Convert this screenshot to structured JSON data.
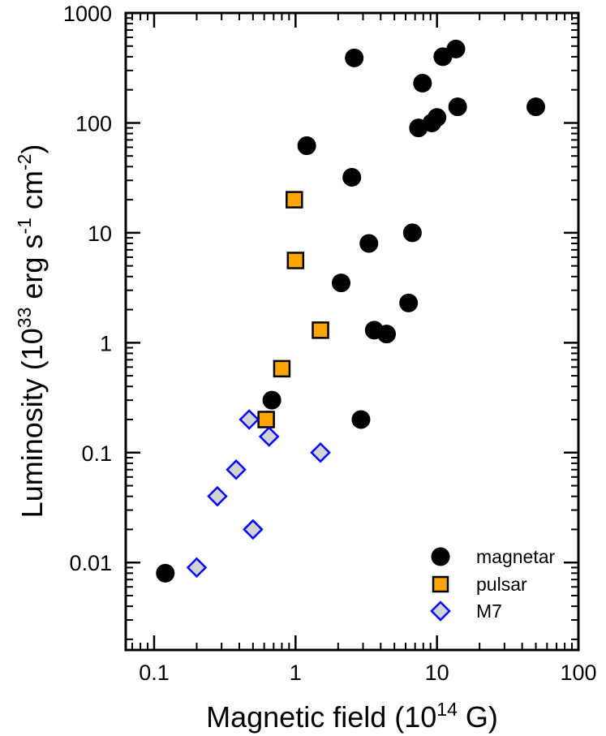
{
  "chart_data": {
    "type": "scatter",
    "x_scale": "log",
    "y_scale": "log",
    "xlim": [
      0.063,
      100
    ],
    "ylim": [
      0.0016,
      1000
    ],
    "xlabel": {
      "prefix": "Magnetic field (10",
      "exp": "14",
      "suffix": " G)"
    },
    "ylabel": {
      "prefix": "Luminosity (10",
      "exp1": "33",
      "mid": " erg s",
      "exp2": "-1",
      "mid2": " cm",
      "exp3": "-2",
      "suffix": ")"
    },
    "x_ticks": [
      {
        "value": 0.1,
        "label": "0.1"
      },
      {
        "value": 1,
        "label": "1"
      },
      {
        "value": 10,
        "label": "10"
      },
      {
        "value": 100,
        "label": "100"
      }
    ],
    "y_ticks": [
      {
        "value": 0.01,
        "label": "0.01"
      },
      {
        "value": 0.1,
        "label": "0.1"
      },
      {
        "value": 1,
        "label": "1"
      },
      {
        "value": 10,
        "label": "10"
      },
      {
        "value": 100,
        "label": "100"
      },
      {
        "value": 1000,
        "label": "1000"
      }
    ],
    "legend_position": "bottom-right",
    "series": [
      {
        "name": "magnetar",
        "marker": "circle",
        "color": "#000000",
        "edge": "#000000",
        "points": [
          [
            0.12,
            0.008
          ],
          [
            0.68,
            0.3
          ],
          [
            1.2,
            62
          ],
          [
            2.1,
            3.5
          ],
          [
            2.5,
            32
          ],
          [
            2.6,
            390
          ],
          [
            2.9,
            0.2
          ],
          [
            3.3,
            8
          ],
          [
            3.6,
            1.3
          ],
          [
            4.4,
            1.2
          ],
          [
            6.3,
            2.3
          ],
          [
            6.7,
            10
          ],
          [
            7.4,
            90
          ],
          [
            7.9,
            230
          ],
          [
            9.2,
            100
          ],
          [
            10,
            112
          ],
          [
            11,
            400
          ],
          [
            13.6,
            470
          ],
          [
            14,
            140
          ],
          [
            50,
            140
          ]
        ]
      },
      {
        "name": "pulsar",
        "marker": "square",
        "color": "#FFA500",
        "edge": "#000000",
        "points": [
          [
            0.62,
            0.2
          ],
          [
            0.8,
            0.58
          ],
          [
            0.98,
            20
          ],
          [
            1.0,
            5.6
          ],
          [
            1.5,
            1.3
          ]
        ]
      },
      {
        "name": "M7",
        "marker": "diamond",
        "color": "#D3D3D3",
        "edge": "#0000FF",
        "points": [
          [
            0.2,
            0.009
          ],
          [
            0.28,
            0.04
          ],
          [
            0.38,
            0.07
          ],
          [
            0.47,
            0.2
          ],
          [
            0.5,
            0.02
          ],
          [
            0.65,
            0.14
          ],
          [
            1.5,
            0.1
          ]
        ]
      }
    ]
  }
}
